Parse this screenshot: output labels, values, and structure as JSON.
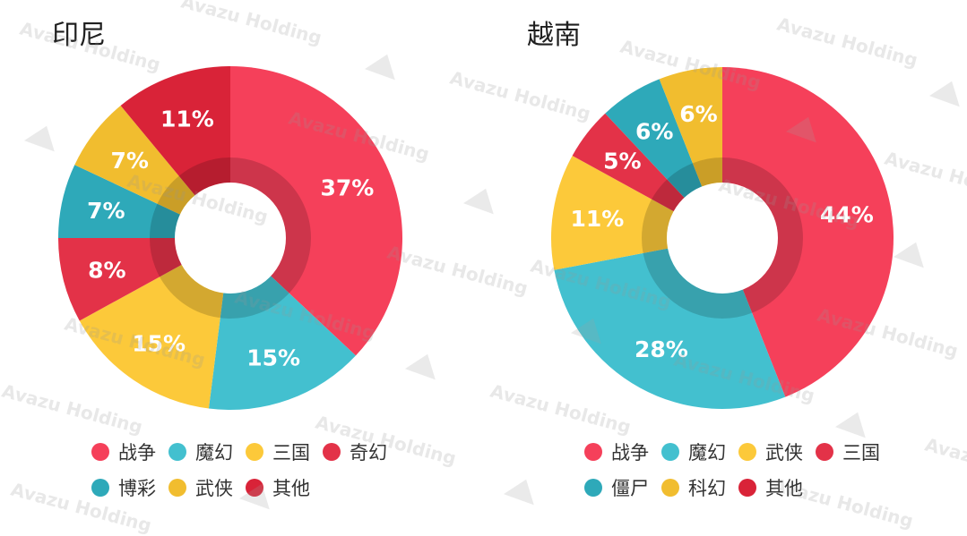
{
  "watermark_text": "Avazu Holding",
  "chart_data": [
    {
      "type": "pie",
      "title": "印尼",
      "slices": [
        {
          "label": "战争",
          "value": 37,
          "display": "37%",
          "color": "#f5405a"
        },
        {
          "label": "魔幻",
          "value": 15,
          "display": "15%",
          "color": "#43c0cf"
        },
        {
          "label": "三国",
          "value": 15,
          "display": "15%",
          "color": "#fcc93a"
        },
        {
          "label": "奇幻",
          "value": 8,
          "display": "8%",
          "color": "#e33248"
        },
        {
          "label": "博彩",
          "value": 7,
          "display": "7%",
          "color": "#2ea9b9"
        },
        {
          "label": "武侠",
          "value": 7,
          "display": "7%",
          "color": "#f1bd2f"
        },
        {
          "label": "其他",
          "value": 11,
          "display": "11%",
          "color": "#d92338"
        }
      ],
      "legend": [
        [
          {
            "label": "战争",
            "color": "#f5405a"
          },
          {
            "label": "魔幻",
            "color": "#43c0cf"
          },
          {
            "label": "三国",
            "color": "#fcc93a"
          },
          {
            "label": "奇幻",
            "color": "#e33248"
          }
        ],
        [
          {
            "label": "博彩",
            "color": "#2ea9b9"
          },
          {
            "label": "武侠",
            "color": "#f1bd2f"
          },
          {
            "label": "其他",
            "color": "#d92338"
          }
        ]
      ]
    },
    {
      "type": "pie",
      "title": "越南",
      "slices": [
        {
          "label": "战争",
          "value": 44,
          "display": "44%",
          "color": "#f5405a"
        },
        {
          "label": "魔幻",
          "value": 28,
          "display": "28%",
          "color": "#43c0cf"
        },
        {
          "label": "武侠",
          "value": 11,
          "display": "11%",
          "color": "#fcc93a"
        },
        {
          "label": "三国",
          "value": 5,
          "display": "5%",
          "color": "#e33248"
        },
        {
          "label": "僵尸",
          "value": 6,
          "display": "6%",
          "color": "#2ea9b9"
        },
        {
          "label": "科幻",
          "value": 6,
          "display": "6%",
          "color": "#f1bd2f"
        }
      ],
      "legend": [
        [
          {
            "label": "战争",
            "color": "#f5405a"
          },
          {
            "label": "魔幻",
            "color": "#43c0cf"
          },
          {
            "label": "武侠",
            "color": "#fcc93a"
          },
          {
            "label": "三国",
            "color": "#e33248"
          }
        ],
        [
          {
            "label": "僵尸",
            "color": "#2ea9b9"
          },
          {
            "label": "科幻",
            "color": "#f1bd2f"
          },
          {
            "label": "其他",
            "color": "#d92338"
          }
        ]
      ]
    }
  ]
}
